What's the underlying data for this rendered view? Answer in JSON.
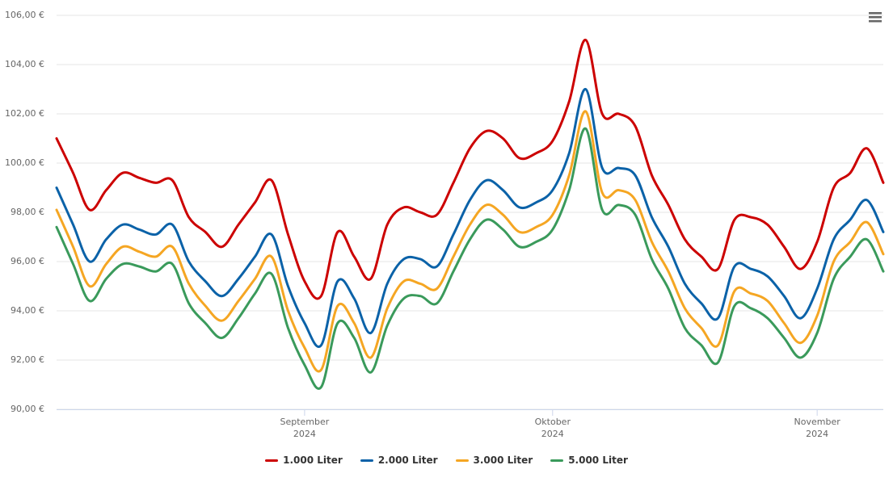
{
  "chart_data": {
    "type": "line",
    "categories": [
      null,
      null,
      null,
      null,
      null,
      null,
      null,
      null,
      null,
      null,
      null,
      null,
      null,
      null,
      null,
      "September\n2024",
      null,
      null,
      null,
      null,
      null,
      null,
      null,
      null,
      null,
      null,
      null,
      null,
      null,
      null,
      "Oktober\n2024",
      null,
      null,
      null,
      null,
      null,
      null,
      null,
      null,
      null,
      null,
      null,
      null,
      null,
      null,
      null,
      "November\n2024",
      null,
      null,
      null,
      null
    ],
    "series": [
      {
        "name": "1.000 Liter",
        "color": "#cc0000",
        "values": [
          101.0,
          99.6,
          98.1,
          98.9,
          99.6,
          99.4,
          99.2,
          99.3,
          97.8,
          97.2,
          96.6,
          97.5,
          98.4,
          99.3,
          97.1,
          95.2,
          94.6,
          97.2,
          96.2,
          95.3,
          97.5,
          98.2,
          98.0,
          97.9,
          99.2,
          100.6,
          101.3,
          101.0,
          100.2,
          100.4,
          100.9,
          102.5,
          105.0,
          102.0,
          102.0,
          101.5,
          99.5,
          98.3,
          96.9,
          96.2,
          95.7,
          97.7,
          97.8,
          97.5,
          96.6,
          95.7,
          96.8,
          99.0,
          99.6,
          100.6,
          99.2
        ]
      },
      {
        "name": "2.000 Liter",
        "color": "#0b62a8",
        "values": [
          99.0,
          97.5,
          96.0,
          96.9,
          97.5,
          97.3,
          97.1,
          97.5,
          96.0,
          95.2,
          94.6,
          95.3,
          96.2,
          97.1,
          95.0,
          93.5,
          92.6,
          95.2,
          94.5,
          93.1,
          95.1,
          96.1,
          96.1,
          95.8,
          97.1,
          98.5,
          99.3,
          98.9,
          98.2,
          98.4,
          98.9,
          100.4,
          103.0,
          99.8,
          99.8,
          99.5,
          97.8,
          96.6,
          95.1,
          94.3,
          93.7,
          95.8,
          95.7,
          95.4,
          94.6,
          93.7,
          94.9,
          96.9,
          97.7,
          98.5,
          97.2
        ]
      },
      {
        "name": "3.000 Liter",
        "color": "#f5a623",
        "values": [
          98.1,
          96.6,
          95.0,
          95.9,
          96.6,
          96.4,
          96.2,
          96.6,
          95.1,
          94.2,
          93.6,
          94.4,
          95.3,
          96.2,
          94.0,
          92.5,
          91.6,
          94.2,
          93.5,
          92.1,
          94.1,
          95.2,
          95.1,
          94.9,
          96.2,
          97.5,
          98.3,
          97.9,
          97.2,
          97.4,
          97.9,
          99.5,
          102.1,
          98.8,
          98.9,
          98.5,
          96.8,
          95.6,
          94.1,
          93.3,
          92.6,
          94.8,
          94.7,
          94.4,
          93.5,
          92.7,
          93.8,
          96.0,
          96.8,
          97.6,
          96.3
        ]
      },
      {
        "name": "5.000 Liter",
        "color": "#3a9a5b",
        "values": [
          97.4,
          95.9,
          94.4,
          95.3,
          95.9,
          95.8,
          95.6,
          95.9,
          94.3,
          93.5,
          92.9,
          93.7,
          94.7,
          95.5,
          93.3,
          91.8,
          90.9,
          93.5,
          92.9,
          91.5,
          93.4,
          94.5,
          94.6,
          94.3,
          95.6,
          96.9,
          97.7,
          97.3,
          96.6,
          96.8,
          97.3,
          98.9,
          101.4,
          98.1,
          98.3,
          97.9,
          96.1,
          94.9,
          93.3,
          92.6,
          91.9,
          94.2,
          94.1,
          93.7,
          92.9,
          92.1,
          93.1,
          95.3,
          96.2,
          96.9,
          95.6
        ]
      }
    ],
    "ylim": [
      90,
      106
    ],
    "yticks": [
      {
        "value": 90,
        "label": "90,00 €"
      },
      {
        "value": 92,
        "label": "92,00 €"
      },
      {
        "value": 94,
        "label": "94,00 €"
      },
      {
        "value": 96,
        "label": "96,00 €"
      },
      {
        "value": 98,
        "label": "98,00 €"
      },
      {
        "value": 100,
        "label": "100,00 €"
      },
      {
        "value": 102,
        "label": "102,00 €"
      },
      {
        "value": 104,
        "label": "104,00 €"
      },
      {
        "value": 106,
        "label": "106,00 €"
      }
    ],
    "grid": true,
    "legend": "bottom"
  }
}
